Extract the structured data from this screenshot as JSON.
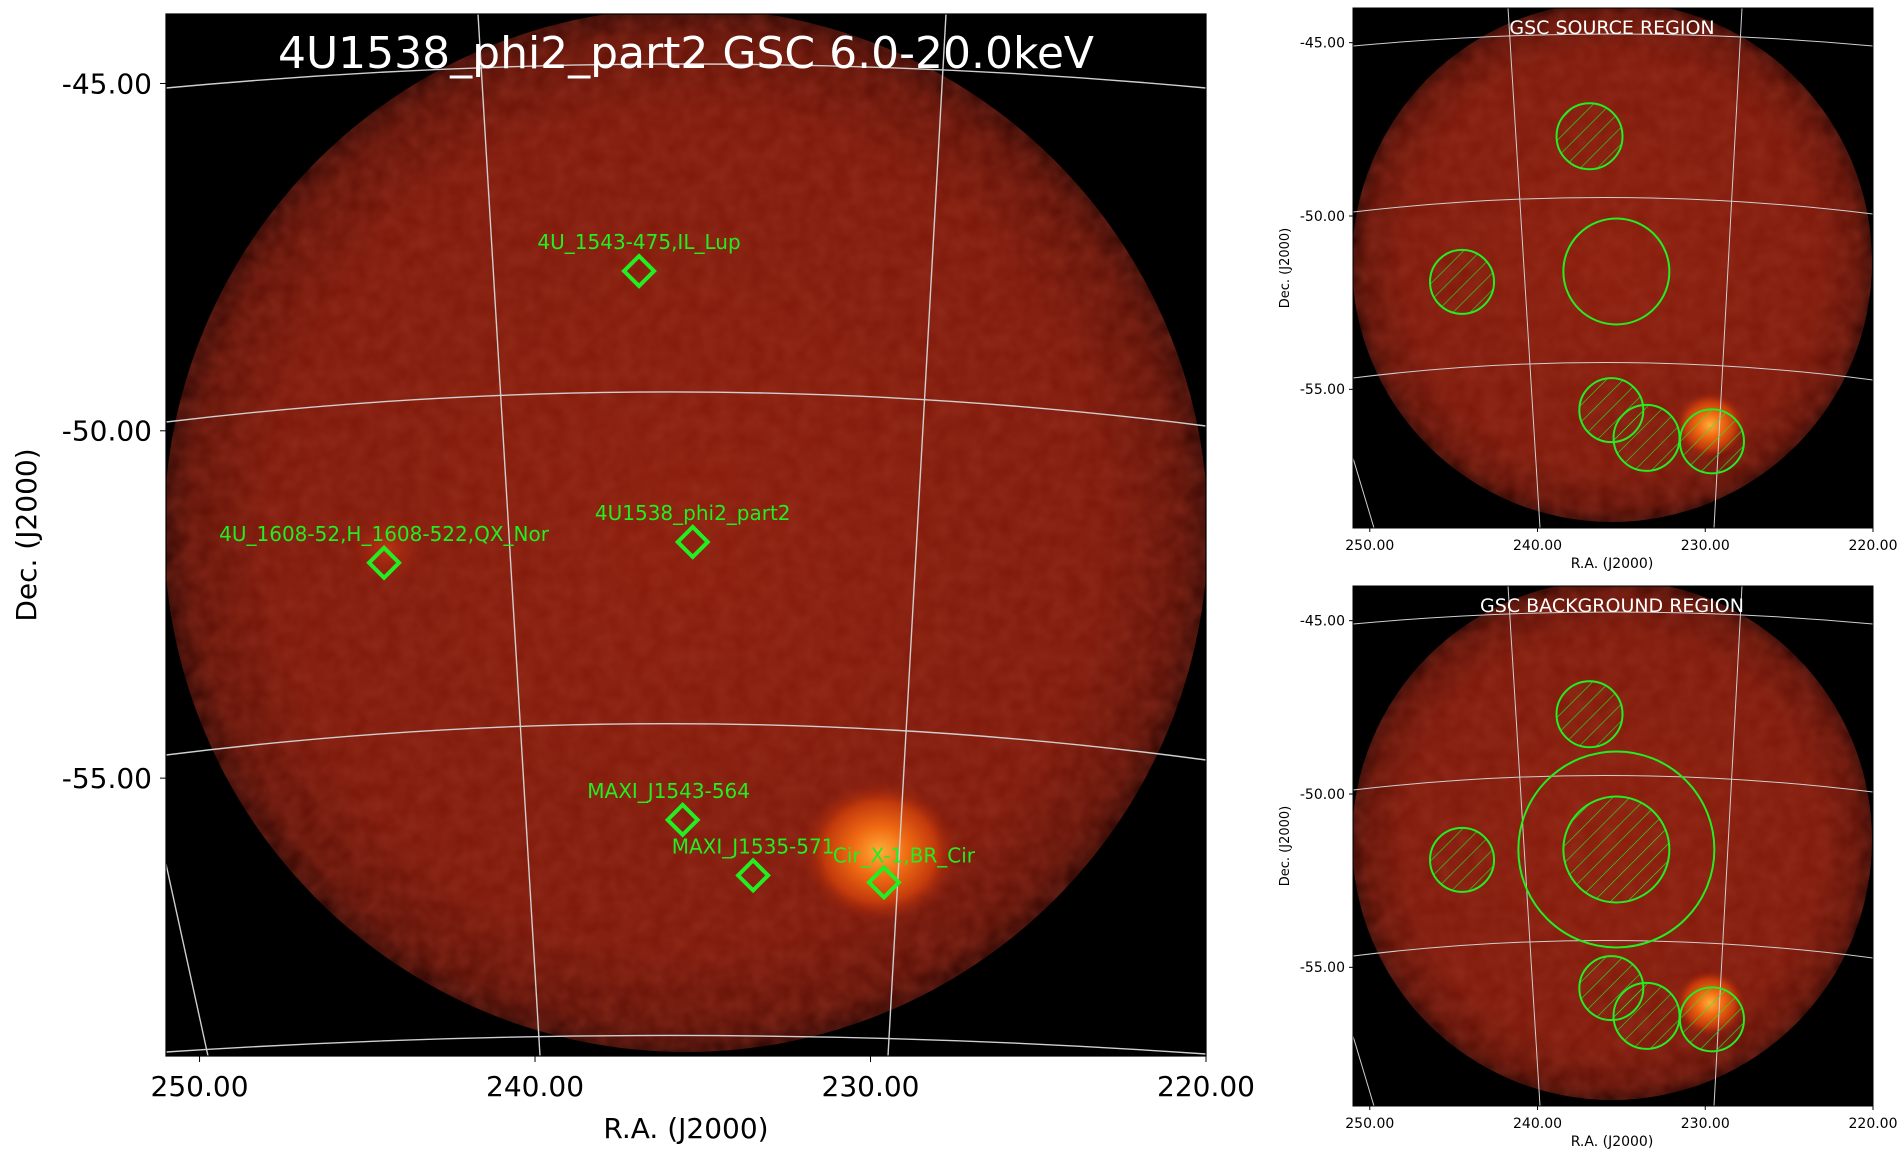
{
  "main_panel": {
    "title": "4U1538_phi2_part2 GSC 6.0-20.0keV",
    "xlabel": "R.A. (J2000)",
    "ylabel": "Dec. (J2000)",
    "x_ticks": [
      "250.00",
      "240.00",
      "230.00",
      "220.00"
    ],
    "y_ticks": [
      "-45.00",
      "-50.00",
      "-55.00"
    ]
  },
  "source_panel": {
    "title": "GSC SOURCE REGION",
    "xlabel": "R.A. (J2000)",
    "ylabel": "Dec. (J2000)",
    "x_ticks": [
      "250.00",
      "240.00",
      "230.00",
      "220.00"
    ],
    "y_ticks": [
      "-45.00",
      "-50.00",
      "-55.00"
    ]
  },
  "background_panel": {
    "title": "GSC BACKGROUND REGION",
    "xlabel": "R.A. (J2000)",
    "ylabel": "Dec. (J2000)",
    "x_ticks": [
      "250.00",
      "240.00",
      "230.00",
      "220.00"
    ],
    "y_ticks": [
      "-45.00",
      "-50.00",
      "-55.00"
    ]
  },
  "colors": {
    "image_background": "#000000",
    "field_red": "#7a1608",
    "region_green": "#22ee22",
    "grid": "#cfcfcf",
    "bright_source": "#ff8a1a"
  },
  "chart_data": [
    {
      "type": "heatmap",
      "panel": "main",
      "xlim": [
        251,
        220
      ],
      "ylim": [
        -59,
        -44
      ],
      "projection": "sky (R.A./Dec.) with curved coordinate grid",
      "sources": [
        {
          "name": "4U_1543-475,IL_Lup",
          "ra": 236.9,
          "dec": -47.7
        },
        {
          "name": "4U_1608-52,H_1608-522,QX_Nor",
          "ra": 244.5,
          "dec": -51.9
        },
        {
          "name": "4U1538_phi2_part2",
          "ra": 235.3,
          "dec": -51.6
        },
        {
          "name": "MAXI_J1543-564",
          "ra": 235.6,
          "dec": -55.6
        },
        {
          "name": "MAXI_J1535-571",
          "ra": 233.5,
          "dec": -56.4
        },
        {
          "name": "Cir_X-1,BR_Cir",
          "ra": 229.6,
          "dec": -56.5
        }
      ]
    },
    {
      "type": "heatmap",
      "panel": "source_region",
      "xlim": [
        251,
        220
      ],
      "ylim": [
        -59,
        -44
      ],
      "hatched_exclusion_regions": [
        "4U_1543-475,IL_Lup",
        "4U_1608-52,H_1608-522,QX_Nor",
        "MAXI_J1543-564",
        "MAXI_J1535-571",
        "Cir_X-1,BR_Cir"
      ],
      "source_region": "4U1538_phi2_part2"
    },
    {
      "type": "heatmap",
      "panel": "background_region",
      "xlim": [
        251,
        220
      ],
      "ylim": [
        -59,
        -44
      ],
      "hatched_exclusion_regions": [
        "4U_1543-475,IL_Lup",
        "4U_1608-52,H_1608-522,QX_Nor",
        "MAXI_J1543-564",
        "MAXI_J1535-571",
        "Cir_X-1,BR_Cir",
        "4U1538_phi2_part2"
      ],
      "background_annulus_around": "4U1538_phi2_part2"
    }
  ]
}
